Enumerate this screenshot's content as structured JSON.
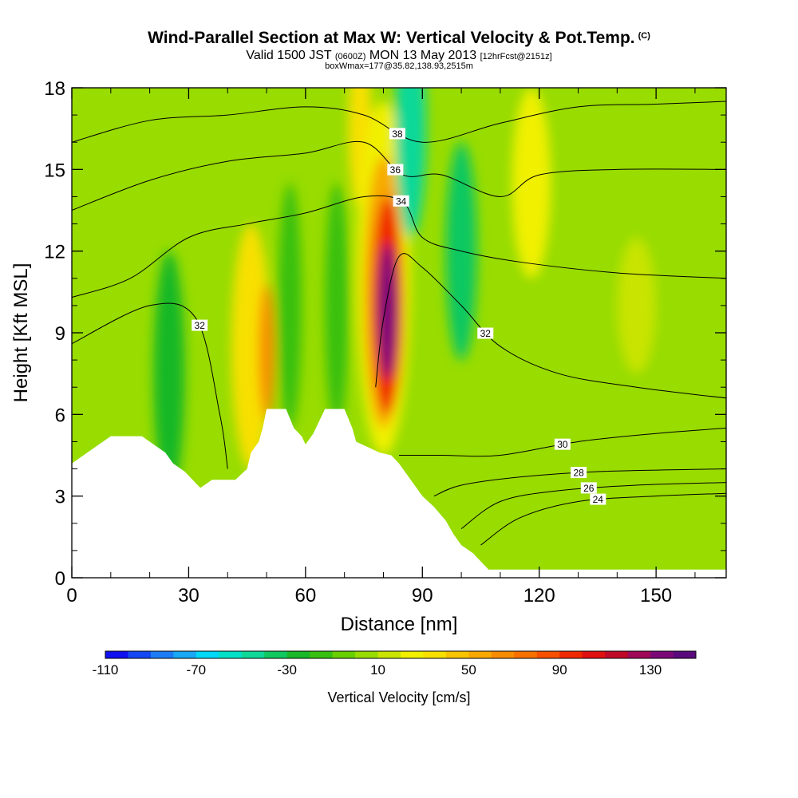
{
  "header": {
    "title": "Wind-Parallel Section at Max W: Vertical Velocity & Pot.Temp.",
    "copyright": "(C)",
    "valid_prefix": "Valid 1500 JST",
    "valid_utc": "(0600Z)",
    "valid_date": "MON 13 May 2013",
    "forecast_info": "[12hrFcst@2151z]",
    "box_info": "boxWmax=177@35.82,138.93,2515m"
  },
  "chart_data": {
    "type": "heatmap",
    "xlabel": "Distance [nm]",
    "ylabel": "Height [Kft MSL]",
    "xlim": [
      0,
      168
    ],
    "ylim": [
      0,
      18
    ],
    "x_ticks": [
      0,
      30,
      60,
      90,
      120,
      150
    ],
    "y_ticks": [
      0,
      3,
      6,
      9,
      12,
      15,
      18
    ],
    "terrain_profile": [
      [
        0,
        4.2
      ],
      [
        3,
        4.5
      ],
      [
        6,
        4.8
      ],
      [
        8,
        5.0
      ],
      [
        10,
        5.2
      ],
      [
        18,
        5.2
      ],
      [
        20,
        5.0
      ],
      [
        24,
        4.6
      ],
      [
        26,
        4.2
      ],
      [
        29,
        3.9
      ],
      [
        31,
        3.6
      ],
      [
        33,
        3.3
      ],
      [
        36,
        3.6
      ],
      [
        42,
        3.6
      ],
      [
        45,
        4.0
      ],
      [
        46,
        4.6
      ],
      [
        48,
        5.0
      ],
      [
        49,
        5.5
      ],
      [
        50,
        6.2
      ],
      [
        55,
        6.2
      ],
      [
        57,
        5.5
      ],
      [
        59,
        5.2
      ],
      [
        60,
        4.9
      ],
      [
        62,
        5.3
      ],
      [
        63,
        5.6
      ],
      [
        65,
        6.2
      ],
      [
        70,
        6.2
      ],
      [
        72,
        5.5
      ],
      [
        73,
        5.0
      ],
      [
        76,
        4.8
      ],
      [
        79,
        4.6
      ],
      [
        82,
        4.5
      ],
      [
        84,
        4.2
      ],
      [
        86,
        3.8
      ],
      [
        88,
        3.4
      ],
      [
        90,
        3.0
      ],
      [
        93,
        2.6
      ],
      [
        96,
        2.1
      ],
      [
        98,
        1.6
      ],
      [
        100,
        1.2
      ],
      [
        103,
        0.9
      ],
      [
        105,
        0.6
      ],
      [
        107,
        0.3
      ],
      [
        109,
        0.3
      ],
      [
        168,
        0.3
      ]
    ],
    "theta_contours": [
      {
        "label": "24",
        "points": [
          [
            105,
            1.2
          ],
          [
            115,
            2.2
          ],
          [
            130,
            2.8
          ],
          [
            150,
            3.0
          ],
          [
            168,
            3.1
          ]
        ]
      },
      {
        "label": "26",
        "points": [
          [
            100,
            1.8
          ],
          [
            110,
            2.8
          ],
          [
            125,
            3.2
          ],
          [
            145,
            3.4
          ],
          [
            168,
            3.5
          ]
        ]
      },
      {
        "label": "28",
        "points": [
          [
            93,
            3.0
          ],
          [
            100,
            3.4
          ],
          [
            115,
            3.7
          ],
          [
            135,
            3.9
          ],
          [
            168,
            4.0
          ]
        ]
      },
      {
        "label": "30",
        "points": [
          [
            84,
            4.5
          ],
          [
            95,
            4.5
          ],
          [
            110,
            4.5
          ],
          [
            130,
            5.0
          ],
          [
            150,
            5.3
          ],
          [
            168,
            5.5
          ]
        ]
      },
      {
        "label": "32",
        "points": [
          [
            0,
            8.6
          ],
          [
            20,
            10.0
          ],
          [
            32,
            9.5
          ],
          [
            38,
            6.0
          ],
          [
            40,
            4.0
          ]
        ]
      },
      {
        "label": "32",
        "points": [
          [
            78,
            7.0
          ],
          [
            80,
            9.5
          ],
          [
            84,
            11.8
          ],
          [
            90,
            11.4
          ],
          [
            100,
            10.0
          ],
          [
            110,
            8.5
          ],
          [
            125,
            7.5
          ],
          [
            145,
            7.0
          ],
          [
            168,
            6.6
          ]
        ]
      },
      {
        "label": "34",
        "points": [
          [
            0,
            10.3
          ],
          [
            15,
            11.0
          ],
          [
            30,
            12.5
          ],
          [
            45,
            13.0
          ],
          [
            60,
            13.4
          ],
          [
            75,
            14.0
          ],
          [
            85,
            13.8
          ],
          [
            90,
            12.5
          ],
          [
            100,
            12.0
          ],
          [
            115,
            11.6
          ],
          [
            140,
            11.2
          ],
          [
            168,
            11.0
          ]
        ]
      },
      {
        "label": "36",
        "points": [
          [
            0,
            13.5
          ],
          [
            20,
            14.6
          ],
          [
            40,
            15.3
          ],
          [
            60,
            15.6
          ],
          [
            75,
            16.0
          ],
          [
            85,
            14.8
          ],
          [
            95,
            14.8
          ],
          [
            110,
            14.0
          ],
          [
            120,
            14.8
          ],
          [
            140,
            15.0
          ],
          [
            168,
            15.0
          ]
        ]
      },
      {
        "label": "38",
        "points": [
          [
            0,
            16.0
          ],
          [
            20,
            16.8
          ],
          [
            40,
            17.0
          ],
          [
            60,
            17.3
          ],
          [
            75,
            17.0
          ],
          [
            90,
            16.0
          ],
          [
            110,
            16.7
          ],
          [
            130,
            17.3
          ],
          [
            150,
            17.4
          ],
          [
            168,
            17.5
          ]
        ]
      }
    ],
    "velocity_field": [
      {
        "x": 25,
        "y": 7.5,
        "rx": 4,
        "ry": 4.5,
        "value": -30
      },
      {
        "x": 46,
        "y": 8.5,
        "rx": 5,
        "ry": 4.5,
        "value": 40
      },
      {
        "x": 50,
        "y": 8.3,
        "rx": 2,
        "ry": 2.5,
        "value": 60
      },
      {
        "x": 56,
        "y": 10.0,
        "rx": 3,
        "ry": 4.5,
        "value": -20
      },
      {
        "x": 68,
        "y": 10.0,
        "rx": 3,
        "ry": 4.5,
        "value": -20
      },
      {
        "x": 74,
        "y": 16.5,
        "rx": 3,
        "ry": 3,
        "value": 30
      },
      {
        "x": 80,
        "y": 11.0,
        "rx": 7,
        "ry": 6.5,
        "value": 20
      },
      {
        "x": 80,
        "y": 10.5,
        "rx": 5,
        "ry": 5,
        "value": 50
      },
      {
        "x": 81,
        "y": 10.0,
        "rx": 4,
        "ry": 4,
        "value": 90
      },
      {
        "x": 81,
        "y": 9.8,
        "rx": 2.5,
        "ry": 2.5,
        "value": 130
      },
      {
        "x": 87,
        "y": 16.5,
        "rx": 4,
        "ry": 4,
        "value": -50
      },
      {
        "x": 100,
        "y": 12.0,
        "rx": 4,
        "ry": 4,
        "value": -40
      },
      {
        "x": 118,
        "y": 14.5,
        "rx": 5,
        "ry": 3.5,
        "value": 20
      },
      {
        "x": 145,
        "y": 10.0,
        "rx": 5,
        "ry": 2.5,
        "value": 10
      }
    ],
    "colorbar": {
      "label": "Vertical Velocity [cm/s]",
      "min": -110,
      "max": 150,
      "tick_labels": [
        "-110",
        "-70",
        "-30",
        "10",
        "50",
        "90",
        "130"
      ],
      "colors": [
        "#1010f0",
        "#1448f5",
        "#1c7cf5",
        "#18a8f5",
        "#00d8f8",
        "#00e0c8",
        "#10d898",
        "#10c860",
        "#18b828",
        "#38c010",
        "#68d000",
        "#98dc00",
        "#c8e400",
        "#f0f000",
        "#f8e000",
        "#f8c400",
        "#f8a800",
        "#f88c00",
        "#f87000",
        "#f85000",
        "#f02800",
        "#e01010",
        "#c00828",
        "#a00858",
        "#7c0878",
        "#5a0a7c"
      ]
    }
  }
}
